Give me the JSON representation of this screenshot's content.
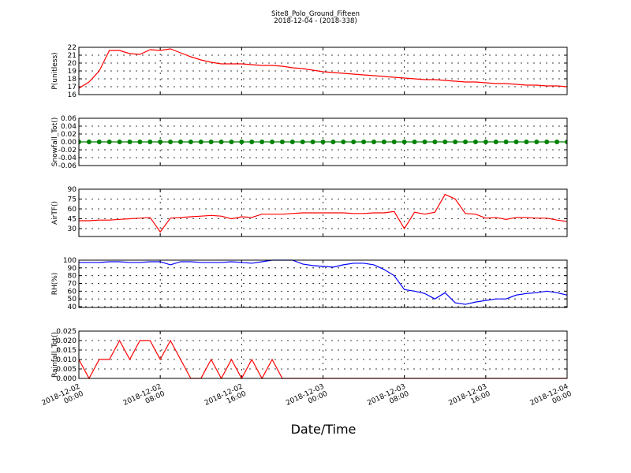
{
  "chart_data": [
    {
      "type": "line",
      "title": "Site8_Polo_Ground_Fifteen",
      "subtitle": "2018-12-04 - (2018-338)",
      "ylabel": "P(unitless)",
      "x": [
        "2018-12-02 00:00",
        "2018-12-02 01:00",
        "2018-12-02 02:00",
        "2018-12-02 03:00",
        "2018-12-02 04:00",
        "2018-12-02 05:00",
        "2018-12-02 06:00",
        "2018-12-02 07:00",
        "2018-12-02 08:00",
        "2018-12-02 09:00",
        "2018-12-02 10:00",
        "2018-12-02 11:00",
        "2018-12-02 12:00",
        "2018-12-02 13:00",
        "2018-12-02 14:00",
        "2018-12-02 15:00",
        "2018-12-02 16:00",
        "2018-12-02 17:00",
        "2018-12-02 18:00",
        "2018-12-02 19:00",
        "2018-12-02 20:00",
        "2018-12-02 21:00",
        "2018-12-02 22:00",
        "2018-12-02 23:00",
        "2018-12-03 00:00",
        "2018-12-03 01:00",
        "2018-12-03 02:00",
        "2018-12-03 03:00",
        "2018-12-03 04:00",
        "2018-12-03 05:00",
        "2018-12-03 06:00",
        "2018-12-03 07:00",
        "2018-12-03 08:00",
        "2018-12-03 09:00",
        "2018-12-03 10:00",
        "2018-12-03 11:00",
        "2018-12-03 12:00",
        "2018-12-03 13:00",
        "2018-12-03 14:00",
        "2018-12-03 15:00",
        "2018-12-03 16:00",
        "2018-12-03 17:00",
        "2018-12-03 18:00",
        "2018-12-03 19:00",
        "2018-12-03 20:00",
        "2018-12-03 21:00",
        "2018-12-03 22:00",
        "2018-12-03 23:00",
        "2018-12-04 00:00"
      ],
      "values": [
        16.8,
        17.6,
        19.0,
        21.6,
        21.6,
        21.2,
        21.1,
        21.7,
        21.6,
        21.8,
        21.3,
        20.8,
        20.4,
        20.1,
        19.9,
        19.9,
        19.9,
        19.8,
        19.7,
        19.7,
        19.6,
        19.4,
        19.3,
        19.1,
        18.9,
        18.8,
        18.7,
        18.6,
        18.5,
        18.4,
        18.3,
        18.2,
        18.1,
        18.0,
        17.9,
        17.9,
        17.8,
        17.7,
        17.6,
        17.6,
        17.5,
        17.4,
        17.4,
        17.3,
        17.2,
        17.2,
        17.1,
        17.1,
        17.0
      ],
      "color": "#ff0000",
      "ylim": [
        16,
        22
      ],
      "yticks": [
        16,
        17,
        18,
        19,
        20,
        21,
        22
      ],
      "grid": true
    },
    {
      "type": "line",
      "ylabel": "Snowfall_Tot()",
      "markers": true,
      "x": [
        "2018-12-02 00:00",
        "2018-12-02 01:00",
        "2018-12-02 02:00",
        "2018-12-02 03:00",
        "2018-12-02 04:00",
        "2018-12-02 05:00",
        "2018-12-02 06:00",
        "2018-12-02 07:00",
        "2018-12-02 08:00",
        "2018-12-02 09:00",
        "2018-12-02 10:00",
        "2018-12-02 11:00",
        "2018-12-02 12:00",
        "2018-12-02 13:00",
        "2018-12-02 14:00",
        "2018-12-02 15:00",
        "2018-12-02 16:00",
        "2018-12-02 17:00",
        "2018-12-02 18:00",
        "2018-12-02 19:00",
        "2018-12-02 20:00",
        "2018-12-02 21:00",
        "2018-12-02 22:00",
        "2018-12-02 23:00",
        "2018-12-03 00:00",
        "2018-12-03 01:00",
        "2018-12-03 02:00",
        "2018-12-03 03:00",
        "2018-12-03 04:00",
        "2018-12-03 05:00",
        "2018-12-03 06:00",
        "2018-12-03 07:00",
        "2018-12-03 08:00",
        "2018-12-03 09:00",
        "2018-12-03 10:00",
        "2018-12-03 11:00",
        "2018-12-03 12:00",
        "2018-12-03 13:00",
        "2018-12-03 14:00",
        "2018-12-03 15:00",
        "2018-12-03 16:00",
        "2018-12-03 17:00",
        "2018-12-03 18:00",
        "2018-12-03 19:00",
        "2018-12-03 20:00",
        "2018-12-03 21:00",
        "2018-12-03 22:00",
        "2018-12-03 23:00",
        "2018-12-04 00:00"
      ],
      "values": [
        0,
        0,
        0,
        0,
        0,
        0,
        0,
        0,
        0,
        0,
        0,
        0,
        0,
        0,
        0,
        0,
        0,
        0,
        0,
        0,
        0,
        0,
        0,
        0,
        0,
        0,
        0,
        0,
        0,
        0,
        0,
        0,
        0,
        0,
        0,
        0,
        0,
        0,
        0,
        0,
        0,
        0,
        0,
        0,
        0,
        0,
        0,
        0,
        0
      ],
      "color": "#008000",
      "ylim": [
        -0.06,
        0.06
      ],
      "yticks": [
        -0.06,
        -0.04,
        -0.02,
        {
          "value": 0,
          "label": "0.00"
        },
        0.02,
        0.04,
        0.06
      ],
      "grid": true
    },
    {
      "type": "line",
      "ylabel": "AirTF()",
      "x": [
        "2018-12-02 00:00",
        "2018-12-02 01:00",
        "2018-12-02 02:00",
        "2018-12-02 03:00",
        "2018-12-02 04:00",
        "2018-12-02 05:00",
        "2018-12-02 06:00",
        "2018-12-02 07:00",
        "2018-12-02 08:00",
        "2018-12-02 09:00",
        "2018-12-02 10:00",
        "2018-12-02 11:00",
        "2018-12-02 12:00",
        "2018-12-02 13:00",
        "2018-12-02 14:00",
        "2018-12-02 15:00",
        "2018-12-02 16:00",
        "2018-12-02 17:00",
        "2018-12-02 18:00",
        "2018-12-02 19:00",
        "2018-12-02 20:00",
        "2018-12-02 21:00",
        "2018-12-02 22:00",
        "2018-12-02 23:00",
        "2018-12-03 00:00",
        "2018-12-03 01:00",
        "2018-12-03 02:00",
        "2018-12-03 03:00",
        "2018-12-03 04:00",
        "2018-12-03 05:00",
        "2018-12-03 06:00",
        "2018-12-03 07:00",
        "2018-12-03 08:00",
        "2018-12-03 09:00",
        "2018-12-03 10:00",
        "2018-12-03 11:00",
        "2018-12-03 12:00",
        "2018-12-03 13:00",
        "2018-12-03 14:00",
        "2018-12-03 15:00",
        "2018-12-03 16:00",
        "2018-12-03 17:00",
        "2018-12-03 18:00",
        "2018-12-03 19:00",
        "2018-12-03 20:00",
        "2018-12-03 21:00",
        "2018-12-03 22:00",
        "2018-12-03 23:00",
        "2018-12-04 00:00"
      ],
      "values": [
        42,
        42,
        43,
        43,
        44,
        45,
        46,
        47,
        25,
        46,
        47,
        48,
        49,
        50,
        49,
        45,
        48,
        47,
        52,
        52,
        52,
        53,
        54,
        54,
        54,
        54,
        54,
        53,
        53,
        54,
        54,
        56,
        30,
        55,
        52,
        55,
        82,
        75,
        53,
        52,
        46,
        47,
        44,
        47,
        47,
        46,
        46,
        43,
        41
      ],
      "color": "#ff0000",
      "ylim": [
        18,
        90
      ],
      "yticks": [
        30,
        45,
        60,
        75,
        90
      ],
      "grid": true
    },
    {
      "type": "line",
      "ylabel": "RH(%)",
      "x": [
        "2018-12-02 00:00",
        "2018-12-02 01:00",
        "2018-12-02 02:00",
        "2018-12-02 03:00",
        "2018-12-02 04:00",
        "2018-12-02 05:00",
        "2018-12-02 06:00",
        "2018-12-02 07:00",
        "2018-12-02 08:00",
        "2018-12-02 09:00",
        "2018-12-02 10:00",
        "2018-12-02 11:00",
        "2018-12-02 12:00",
        "2018-12-02 13:00",
        "2018-12-02 14:00",
        "2018-12-02 15:00",
        "2018-12-02 16:00",
        "2018-12-02 17:00",
        "2018-12-02 18:00",
        "2018-12-02 19:00",
        "2018-12-02 20:00",
        "2018-12-02 21:00",
        "2018-12-02 22:00",
        "2018-12-02 23:00",
        "2018-12-03 00:00",
        "2018-12-03 01:00",
        "2018-12-03 02:00",
        "2018-12-03 03:00",
        "2018-12-03 04:00",
        "2018-12-03 05:00",
        "2018-12-03 06:00",
        "2018-12-03 07:00",
        "2018-12-03 08:00",
        "2018-12-03 09:00",
        "2018-12-03 10:00",
        "2018-12-03 11:00",
        "2018-12-03 12:00",
        "2018-12-03 13:00",
        "2018-12-03 14:00",
        "2018-12-03 15:00",
        "2018-12-03 16:00",
        "2018-12-03 17:00",
        "2018-12-03 18:00",
        "2018-12-03 19:00",
        "2018-12-03 20:00",
        "2018-12-03 21:00",
        "2018-12-03 22:00",
        "2018-12-03 23:00",
        "2018-12-04 00:00"
      ],
      "values": [
        97,
        97,
        97,
        98,
        98,
        97,
        97,
        98,
        98,
        94,
        98,
        98,
        97,
        97,
        97,
        98,
        97,
        96,
        98,
        100,
        100,
        100,
        95,
        93,
        92,
        91,
        94,
        96,
        96,
        94,
        88,
        80,
        62,
        60,
        57,
        50,
        58,
        45,
        43,
        46,
        48,
        50,
        50,
        55,
        57,
        58,
        60,
        58,
        55
      ],
      "color": "#0000ff",
      "ylim": [
        39,
        100
      ],
      "yticks": [
        40,
        50,
        60,
        70,
        80,
        90,
        100
      ],
      "grid": true
    },
    {
      "type": "line",
      "ylabel": "Rainfall_Tot()",
      "xlabel": "Date/Time",
      "x": [
        "2018-12-02 00:00",
        "2018-12-02 01:00",
        "2018-12-02 02:00",
        "2018-12-02 03:00",
        "2018-12-02 04:00",
        "2018-12-02 05:00",
        "2018-12-02 06:00",
        "2018-12-02 07:00",
        "2018-12-02 08:00",
        "2018-12-02 09:00",
        "2018-12-02 10:00",
        "2018-12-02 11:00",
        "2018-12-02 12:00",
        "2018-12-02 13:00",
        "2018-12-02 14:00",
        "2018-12-02 15:00",
        "2018-12-02 16:00",
        "2018-12-02 17:00",
        "2018-12-02 18:00",
        "2018-12-02 19:00",
        "2018-12-02 20:00",
        "2018-12-02 21:00",
        "2018-12-02 22:00",
        "2018-12-02 23:00",
        "2018-12-03 00:00",
        "2018-12-03 01:00",
        "2018-12-03 02:00",
        "2018-12-03 03:00",
        "2018-12-03 04:00",
        "2018-12-03 05:00",
        "2018-12-03 06:00",
        "2018-12-03 07:00",
        "2018-12-03 08:00",
        "2018-12-03 09:00",
        "2018-12-03 10:00",
        "2018-12-03 11:00",
        "2018-12-03 12:00",
        "2018-12-03 13:00",
        "2018-12-03 14:00",
        "2018-12-03 15:00",
        "2018-12-03 16:00",
        "2018-12-03 17:00",
        "2018-12-03 18:00",
        "2018-12-03 19:00",
        "2018-12-03 20:00",
        "2018-12-03 21:00",
        "2018-12-03 22:00",
        "2018-12-03 23:00",
        "2018-12-04 00:00"
      ],
      "values": [
        0.01,
        0,
        0.01,
        0.01,
        0.02,
        0.01,
        0.02,
        0.02,
        0.01,
        0.02,
        0.01,
        0,
        0,
        0.01,
        0,
        0.01,
        0,
        0.01,
        0,
        0.01,
        0,
        0,
        0,
        0,
        0,
        0,
        0,
        0,
        0,
        0,
        0,
        0,
        0,
        0,
        0,
        0,
        0,
        0,
        0,
        0,
        0,
        0,
        0,
        0,
        0,
        0,
        0,
        0,
        0
      ],
      "color": "#ff0000",
      "ylim": [
        0,
        0.025
      ],
      "yticks": [
        {
          "value": 0,
          "label": "0.000"
        },
        0.005,
        {
          "value": 0.01,
          "label": "0.010"
        },
        0.015,
        {
          "value": 0.02,
          "label": "0.020"
        },
        0.025
      ],
      "grid": true,
      "xlim": [
        "2018-12-02 00:00",
        "2018-12-04 00:00"
      ],
      "xticks": [
        "2018-12-02 00:00",
        "2018-12-02 08:00",
        "2018-12-02 16:00",
        "2018-12-03 00:00",
        "2018-12-03 08:00",
        "2018-12-03 16:00",
        "2018-12-04 00:00"
      ]
    }
  ]
}
